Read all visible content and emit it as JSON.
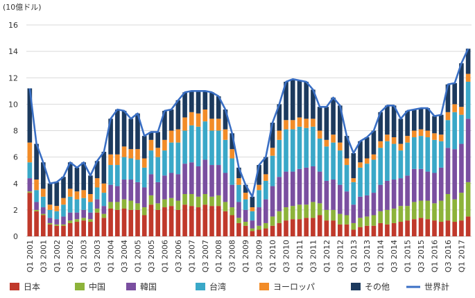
{
  "chart_data": {
    "type": "bar",
    "stacked": true,
    "unit_label": "(10億ドル)",
    "title": "",
    "xlabel": "",
    "ylabel": "",
    "ylim": [
      0,
      16
    ],
    "yticks": [
      0,
      2,
      4,
      6,
      8,
      10,
      12,
      14,
      16
    ],
    "grid": true,
    "legend_position": "bottom",
    "categories": [
      "Q1 2001",
      "Q2 2001",
      "Q3 2001",
      "Q4 2001",
      "Q1 2002",
      "Q2 2002",
      "Q3 2002",
      "Q4 2002",
      "Q1 2003",
      "Q2 2003",
      "Q3 2003",
      "Q4 2003",
      "Q1 2004",
      "Q2 2004",
      "Q3 2004",
      "Q4 2004",
      "Q1 2005",
      "Q2 2005",
      "Q3 2005",
      "Q4 2005",
      "Q1 2006",
      "Q2 2006",
      "Q3 2006",
      "Q4 2006",
      "Q1 2007",
      "Q2 2007",
      "Q3 2007",
      "Q4 2007",
      "Q1 2008",
      "Q2 2008",
      "Q3 2008",
      "Q4 2008",
      "Q1 2009",
      "Q2 2009",
      "Q3 2009",
      "Q4 2009",
      "Q1 2010",
      "Q2 2010",
      "Q3 2010",
      "Q4 2010",
      "Q1 2011",
      "Q2 2011",
      "Q3 2011",
      "Q4 2011",
      "Q1 2012",
      "Q2 2012",
      "Q3 2012",
      "Q4 2012",
      "Q1 2013",
      "Q2 2013",
      "Q3 2013",
      "Q4 2013",
      "Q1 2014",
      "Q2 2014",
      "Q3 2014",
      "Q4 2014",
      "Q1 2015",
      "Q2 2015",
      "Q3 2015",
      "Q4 2015",
      "Q1 2016",
      "Q2 2016",
      "Q3 2016",
      "Q4 2016",
      "Q1 2017",
      "Q2 2017"
    ],
    "tick_labels": [
      "Q1 2001",
      "Q3 2001",
      "Q1 2002",
      "Q3 2002",
      "Q1 2003",
      "Q3 2003",
      "Q1 2004",
      "Q3 2004",
      "Q1 2005",
      "Q3 2005",
      "Q1 2006",
      "Q3 2006",
      "Q1 2007",
      "Q3 2007",
      "Q1 2008",
      "Q3 2008",
      "Q1 2009",
      "Q3 2009",
      "Q1 2010",
      "Q3 2010",
      "Q1 2011",
      "Q3 2011",
      "Q1 2012",
      "Q3 2012",
      "Q1 2013",
      "Q3 2013",
      "Q1 2014",
      "Q3 2014",
      "Q1 2015",
      "Q3 2015",
      "Q1 2016",
      "Q3 2016",
      "Q1 2017"
    ],
    "series": [
      {
        "name": "日本",
        "color": "#c0392b",
        "values": [
          3.3,
          1.9,
          1.6,
          0.9,
          0.8,
          0.8,
          1.0,
          1.1,
          1.2,
          1.1,
          1.8,
          1.4,
          2.1,
          2.0,
          2.1,
          2.0,
          2.0,
          1.6,
          2.4,
          2.0,
          2.2,
          2.3,
          2.0,
          2.4,
          2.3,
          2.2,
          2.4,
          2.3,
          2.3,
          1.9,
          1.6,
          1.0,
          0.8,
          0.4,
          0.5,
          0.6,
          0.8,
          1.0,
          1.2,
          1.3,
          1.3,
          1.4,
          1.4,
          1.6,
          1.2,
          1.2,
          0.9,
          0.9,
          0.5,
          0.7,
          0.8,
          0.8,
          1.0,
          0.9,
          1.0,
          1.1,
          1.2,
          1.3,
          1.4,
          1.3,
          1.2,
          1.1,
          1.2,
          1.1,
          1.2,
          1.5
        ]
      },
      {
        "name": "中国",
        "color": "#8db33a",
        "values": [
          0.1,
          0.1,
          0.1,
          0.1,
          0.1,
          0.1,
          0.2,
          0.2,
          0.2,
          0.2,
          0.3,
          0.3,
          0.5,
          0.6,
          0.7,
          0.7,
          0.5,
          0.6,
          0.7,
          0.5,
          0.6,
          0.6,
          0.7,
          0.8,
          0.9,
          0.8,
          0.8,
          0.7,
          0.8,
          0.7,
          0.6,
          0.4,
          0.3,
          0.2,
          0.3,
          0.4,
          0.7,
          0.9,
          1.0,
          1.0,
          1.1,
          1.0,
          1.2,
          0.9,
          0.8,
          0.8,
          0.8,
          0.7,
          0.5,
          0.7,
          0.7,
          0.8,
          0.9,
          1.1,
          1.1,
          1.2,
          1.1,
          1.3,
          1.3,
          1.4,
          1.3,
          1.6,
          2.0,
          1.7,
          2.1,
          2.6
        ]
      },
      {
        "name": "韓国",
        "color": "#7a4fa0",
        "values": [
          1.0,
          0.6,
          0.5,
          0.4,
          0.4,
          0.6,
          0.6,
          0.5,
          0.6,
          0.5,
          0.7,
          0.6,
          1.3,
          1.2,
          1.5,
          1.6,
          1.6,
          1.5,
          1.6,
          1.6,
          1.8,
          1.9,
          2.0,
          2.3,
          2.4,
          2.3,
          2.6,
          2.4,
          2.3,
          2.2,
          1.7,
          1.2,
          0.9,
          0.6,
          1.4,
          1.8,
          2.3,
          2.6,
          2.7,
          2.6,
          2.7,
          2.8,
          2.7,
          2.4,
          2.2,
          2.3,
          2.2,
          1.8,
          1.4,
          1.6,
          1.6,
          1.7,
          2.0,
          2.2,
          2.2,
          2.1,
          2.3,
          2.5,
          2.4,
          2.2,
          2.3,
          2.5,
          3.5,
          3.8,
          3.7,
          4.8
        ]
      },
      {
        "name": "台湾",
        "color": "#3aa8c8",
        "values": [
          1.2,
          0.9,
          0.8,
          0.6,
          0.6,
          0.9,
          1.2,
          1.0,
          0.9,
          0.8,
          0.9,
          1.0,
          1.5,
          1.6,
          1.7,
          1.6,
          1.7,
          1.5,
          1.8,
          1.9,
          1.9,
          2.3,
          2.4,
          2.5,
          2.8,
          3.0,
          2.9,
          2.6,
          2.6,
          2.5,
          2.0,
          1.3,
          0.8,
          0.7,
          1.3,
          1.4,
          2.3,
          2.8,
          3.2,
          3.2,
          3.2,
          3.0,
          3.0,
          2.5,
          2.6,
          2.8,
          2.6,
          2.0,
          1.7,
          2.2,
          2.4,
          2.5,
          2.8,
          3.0,
          2.7,
          2.1,
          2.5,
          2.4,
          2.5,
          2.6,
          2.5,
          2.0,
          2.1,
          2.8,
          2.2,
          2.8
        ]
      },
      {
        "name": "ヨーロッパ",
        "color": "#f28c28",
        "values": [
          1.5,
          0.8,
          0.6,
          0.4,
          0.4,
          0.5,
          0.6,
          0.6,
          0.6,
          0.6,
          0.7,
          0.7,
          0.8,
          0.8,
          0.8,
          0.7,
          0.8,
          0.7,
          0.8,
          0.7,
          0.8,
          0.9,
          1.0,
          1.0,
          1.0,
          1.0,
          0.9,
          0.9,
          0.9,
          0.8,
          0.7,
          0.5,
          0.5,
          0.3,
          0.4,
          0.5,
          0.6,
          0.7,
          0.7,
          0.7,
          0.7,
          0.7,
          0.6,
          0.6,
          0.5,
          0.6,
          0.6,
          0.5,
          0.3,
          0.4,
          0.4,
          0.4,
          0.5,
          0.5,
          0.5,
          0.5,
          0.5,
          0.5,
          0.5,
          0.5,
          0.5,
          0.5,
          0.6,
          0.6,
          0.6,
          0.6
        ]
      },
      {
        "name": "その他",
        "color": "#1c3a5e",
        "values": [
          4.1,
          2.7,
          2.0,
          1.6,
          1.8,
          1.6,
          2.0,
          1.8,
          2.1,
          1.4,
          1.3,
          2.4,
          2.7,
          3.4,
          2.7,
          2.3,
          2.7,
          1.7,
          0.6,
          1.2,
          2.2,
          1.6,
          2.2,
          1.9,
          1.6,
          1.7,
          1.4,
          2.0,
          1.7,
          1.5,
          1.2,
          0.8,
          0.6,
          0.8,
          1.5,
          1.3,
          1.9,
          2.0,
          2.9,
          3.1,
          2.8,
          2.8,
          2.2,
          1.8,
          2.5,
          2.8,
          2.8,
          1.7,
          1.9,
          1.6,
          1.6,
          1.8,
          2.2,
          2.2,
          2.4,
          1.9,
          1.9,
          1.6,
          1.6,
          1.7,
          1.3,
          1.5,
          2.1,
          1.6,
          3.3,
          1.9
        ]
      }
    ],
    "total_line": {
      "name": "世界計",
      "color": "#3a6fc4",
      "values": [
        11.2,
        7.0,
        5.6,
        4.0,
        4.1,
        4.5,
        5.6,
        5.2,
        5.6,
        4.6,
        5.7,
        6.4,
        8.9,
        9.6,
        9.5,
        8.9,
        9.3,
        7.6,
        7.9,
        7.9,
        9.5,
        9.6,
        10.3,
        10.9,
        11.0,
        11.0,
        11.0,
        10.9,
        10.6,
        9.6,
        7.8,
        5.2,
        3.9,
        3.0,
        5.4,
        6.0,
        8.6,
        10.0,
        11.7,
        11.9,
        11.8,
        11.7,
        11.1,
        9.8,
        9.8,
        10.5,
        9.9,
        7.6,
        6.3,
        7.2,
        7.5,
        8.0,
        9.4,
        9.9,
        9.9,
        8.9,
        9.5,
        9.6,
        9.7,
        9.7,
        9.1,
        9.2,
        11.5,
        11.6,
        13.1,
        14.2
      ]
    }
  }
}
